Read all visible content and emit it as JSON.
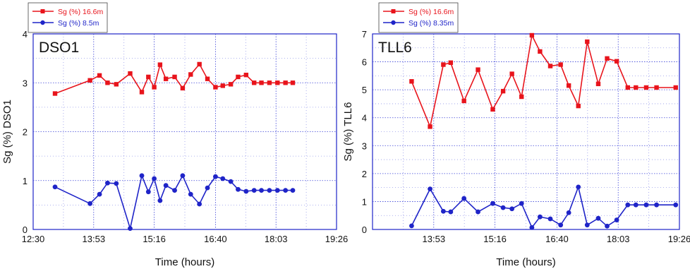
{
  "chart_data": [
    {
      "type": "line",
      "panel_label": "DSO1",
      "xlabel": "Time (hours)",
      "ylabel": "Sg (%) DSO1",
      "xlim": [
        "12:30",
        "19:26"
      ],
      "ylim": [
        0,
        4
      ],
      "x_tick_labels": [
        "12:30",
        "13:53",
        "15:16",
        "16:40",
        "18:03",
        "19:26"
      ],
      "y_tick_labels": [
        "0",
        "1",
        "2",
        "3",
        "4"
      ],
      "grid": true,
      "legend_position": "top-left",
      "series": [
        {
          "name": "Sg (%) 16.6m",
          "color": "#e8141c",
          "marker": "square",
          "x": [
            "13:00",
            "13:48",
            "14:01",
            "14:12",
            "14:24",
            "14:43",
            "14:59",
            "15:08",
            "15:16",
            "15:24",
            "15:32",
            "15:44",
            "15:55",
            "16:06",
            "16:18",
            "16:29",
            "16:40",
            "16:50",
            "17:01",
            "17:11",
            "17:22",
            "17:33",
            "17:43",
            "17:54",
            "18:05",
            "18:16",
            "18:26"
          ],
          "values": [
            2.78,
            3.05,
            3.15,
            3.0,
            2.97,
            3.19,
            2.81,
            3.12,
            2.91,
            3.37,
            3.08,
            3.12,
            2.89,
            3.17,
            3.38,
            3.08,
            2.91,
            2.94,
            2.97,
            3.12,
            3.16,
            3.0,
            3.0,
            3.0,
            3.0,
            3.0,
            3.0
          ]
        },
        {
          "name": "Sg (%) 8.5m",
          "color": "#1f24c8",
          "marker": "circle",
          "x": [
            "13:00",
            "13:48",
            "14:01",
            "14:12",
            "14:24",
            "14:43",
            "14:59",
            "15:08",
            "15:16",
            "15:24",
            "15:32",
            "15:44",
            "15:55",
            "16:06",
            "16:18",
            "16:29",
            "16:40",
            "16:50",
            "17:01",
            "17:11",
            "17:22",
            "17:33",
            "17:43",
            "17:54",
            "18:05",
            "18:16",
            "18:26"
          ],
          "values": [
            0.87,
            0.53,
            0.72,
            0.95,
            0.94,
            0.02,
            1.1,
            0.77,
            1.04,
            0.59,
            0.9,
            0.8,
            1.1,
            0.72,
            0.52,
            0.85,
            1.08,
            1.04,
            0.98,
            0.82,
            0.78,
            0.8,
            0.8,
            0.8,
            0.8,
            0.8,
            0.8
          ]
        }
      ]
    },
    {
      "type": "line",
      "panel_label": "TLL6",
      "xlabel": "Time (hours)",
      "ylabel": "Sg (%) TLL6",
      "xlim": [
        "12:30",
        "19:26"
      ],
      "ylim": [
        0,
        7
      ],
      "x_tick_labels": [
        "13:53",
        "15:16",
        "16:40",
        "18:03",
        "19:26"
      ],
      "y_tick_labels": [
        "0",
        "1",
        "2",
        "3",
        "4",
        "5",
        "6",
        "7"
      ],
      "grid": true,
      "legend_position": "top-left",
      "series": [
        {
          "name": "Sg (%) 16.6m",
          "color": "#e8141c",
          "marker": "square",
          "x": [
            "13:23",
            "13:48",
            "14:06",
            "14:16",
            "14:34",
            "14:53",
            "15:13",
            "15:27",
            "15:39",
            "15:52",
            "16:06",
            "16:17",
            "16:31",
            "16:45",
            "16:56",
            "17:09",
            "17:21",
            "17:36",
            "17:48",
            "18:01",
            "18:16",
            "18:27",
            "18:41",
            "18:55",
            "19:21"
          ],
          "values": [
            5.3,
            3.68,
            5.9,
            5.97,
            4.6,
            5.72,
            4.3,
            4.95,
            5.57,
            4.75,
            6.95,
            6.37,
            5.85,
            5.9,
            5.15,
            4.42,
            6.72,
            5.21,
            6.12,
            6.02,
            5.08,
            5.08,
            5.08,
            5.08,
            5.08
          ]
        },
        {
          "name": "Sg (%) 8.35m",
          "color": "#1f24c8",
          "marker": "circle",
          "x": [
            "13:23",
            "13:48",
            "14:06",
            "14:16",
            "14:34",
            "14:53",
            "15:13",
            "15:27",
            "15:39",
            "15:52",
            "16:06",
            "16:17",
            "16:31",
            "16:45",
            "16:56",
            "17:09",
            "17:21",
            "17:36",
            "17:48",
            "18:01",
            "18:16",
            "18:27",
            "18:41",
            "18:55",
            "19:21"
          ],
          "values": [
            0.13,
            1.45,
            0.65,
            0.63,
            1.11,
            0.63,
            0.93,
            0.78,
            0.74,
            0.93,
            0.07,
            0.45,
            0.38,
            0.16,
            0.6,
            1.52,
            0.16,
            0.4,
            0.12,
            0.34,
            0.88,
            0.88,
            0.88,
            0.88,
            0.88
          ]
        }
      ]
    }
  ]
}
